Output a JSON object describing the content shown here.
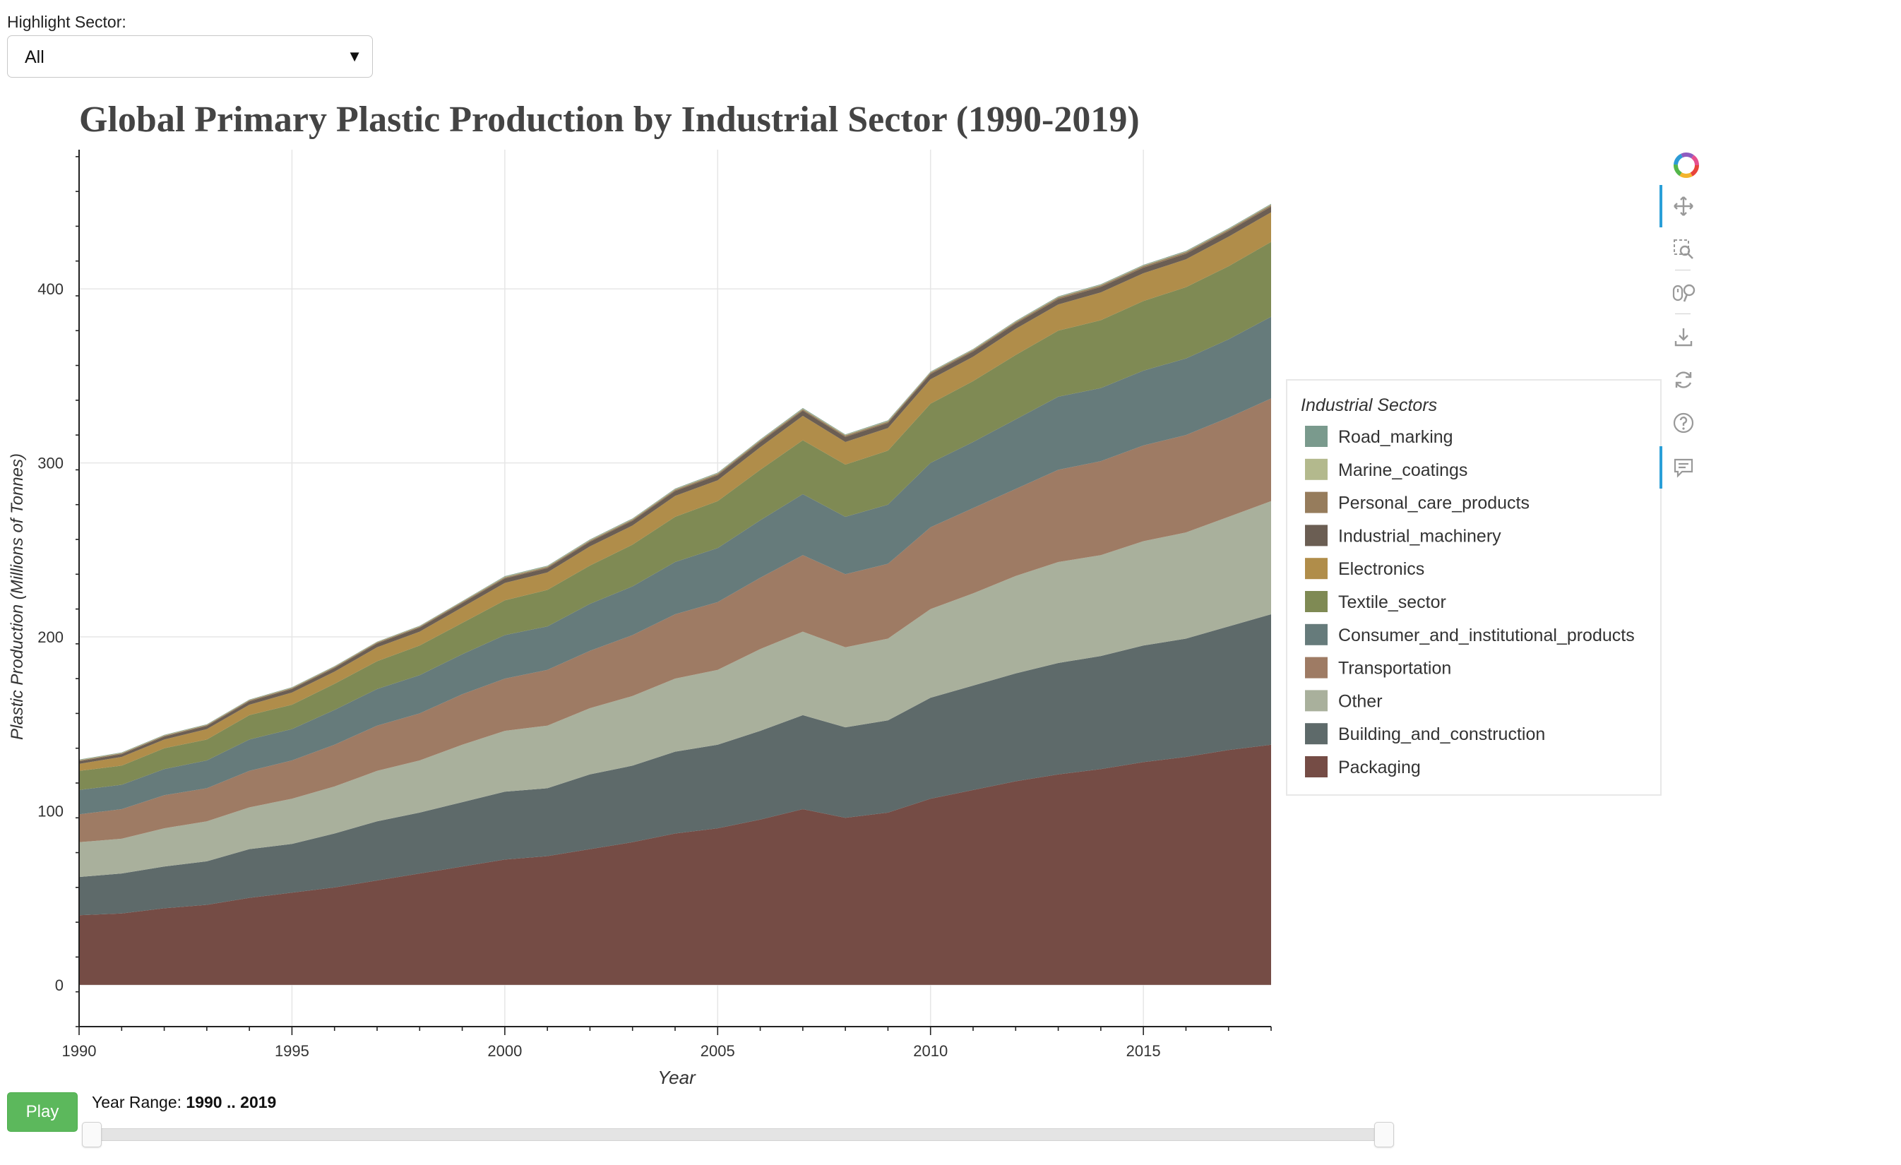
{
  "controls": {
    "highlight_label": "Highlight Sector:",
    "highlight_value": "All",
    "play_label": "Play",
    "range_label": "Year Range:",
    "range_value": "1990 .. 2019",
    "range_start": 1990,
    "range_end": 2019
  },
  "toolbar": {
    "tools": [
      "bokeh-logo-icon",
      "pan-icon",
      "box-zoom-icon",
      "wheel-zoom-icon",
      "save-icon",
      "reset-icon",
      "help-icon",
      "hover-icon"
    ]
  },
  "chart_data": {
    "type": "area",
    "stacked": true,
    "title": "Global Primary Plastic Production by Industrial Sector (1990-2019)",
    "xlabel": "Year",
    "ylabel": "Plastic Production (Millions of Tonnes)",
    "legend_title": "Industrial Sectors",
    "legend_placement": "right",
    "grid": true,
    "xlim": [
      1990,
      2018
    ],
    "ylim": [
      -24,
      480
    ],
    "x_ticks": [
      1990,
      1995,
      2000,
      2005,
      2010,
      2015
    ],
    "y_ticks": [
      0,
      100,
      200,
      300,
      400
    ],
    "x": [
      1990,
      1991,
      1992,
      1993,
      1994,
      1995,
      1996,
      1997,
      1998,
      1999,
      2000,
      2001,
      2002,
      2003,
      2004,
      2005,
      2006,
      2007,
      2008,
      2009,
      2010,
      2011,
      2012,
      2013,
      2014,
      2015,
      2016,
      2017,
      2018
    ],
    "series": [
      {
        "name": "Packaging",
        "color": "#754c45",
        "values": [
          40,
          41,
          44,
          46,
          50,
          53,
          56,
          60,
          64,
          68,
          72,
          74,
          78,
          82,
          87,
          90,
          95,
          101,
          96,
          99,
          107,
          112,
          117,
          121,
          124,
          128,
          131,
          135,
          138
        ]
      },
      {
        "name": "Building_and_construction",
        "color": "#5e6a6a",
        "values": [
          22,
          23,
          24,
          25,
          28,
          28,
          31,
          34,
          35,
          37,
          39,
          39,
          43,
          44,
          47,
          48,
          51,
          54,
          52,
          53,
          58,
          60,
          62,
          64,
          65,
          67,
          68,
          71,
          75
        ]
      },
      {
        "name": "Other",
        "color": "#a9b09c",
        "values": [
          20,
          20,
          22,
          23,
          24,
          26,
          27,
          29,
          30,
          33,
          35,
          36,
          38,
          40,
          42,
          43,
          47,
          48,
          46,
          47,
          51,
          53,
          56,
          58,
          58,
          60,
          61,
          63,
          65
        ]
      },
      {
        "name": "Transportation",
        "color": "#9e7b64",
        "values": [
          16,
          17,
          19,
          19,
          21,
          22,
          24,
          26,
          27,
          29,
          30,
          32,
          33,
          35,
          37,
          39,
          41,
          44,
          42,
          43,
          47,
          49,
          50,
          53,
          54,
          55,
          56,
          57,
          59
        ]
      },
      {
        "name": "Consumer_and_institutional_products",
        "color": "#667b7b",
        "values": [
          14,
          14,
          15,
          16,
          18,
          18,
          20,
          21,
          22,
          23,
          25,
          25,
          27,
          28,
          30,
          31,
          33,
          35,
          33,
          34,
          37,
          38,
          40,
          42,
          42,
          43,
          44,
          45,
          47
        ]
      },
      {
        "name": "Textile_sector",
        "color": "#7f8a54",
        "values": [
          11,
          11,
          12,
          12,
          14,
          14,
          15,
          16,
          17,
          18,
          20,
          21,
          22,
          24,
          26,
          27,
          29,
          31,
          30,
          31,
          34,
          35,
          37,
          38,
          39,
          40,
          41,
          42,
          43
        ]
      },
      {
        "name": "Electronics",
        "color": "#b08d4a",
        "values": [
          4,
          5,
          5,
          6,
          6,
          7,
          7,
          8,
          8,
          9,
          10,
          10,
          11,
          11,
          12,
          12,
          13,
          14,
          13,
          13,
          14,
          14,
          15,
          15,
          16,
          16,
          16,
          17,
          17
        ]
      },
      {
        "name": "Industrial_machinery",
        "color": "#6b5e53",
        "values": [
          1.5,
          1.6,
          1.7,
          1.8,
          1.9,
          2.0,
          2.1,
          2.2,
          2.3,
          2.4,
          2.5,
          2.5,
          2.6,
          2.7,
          2.8,
          2.9,
          3.0,
          3.0,
          2.9,
          2.9,
          3.0,
          3.0,
          3.1,
          3.1,
          3.1,
          3.2,
          3.2,
          3.2,
          3.3
        ]
      },
      {
        "name": "Personal_care_products",
        "color": "#967c5c",
        "values": [
          0.5,
          0.5,
          0.5,
          0.5,
          0.6,
          0.6,
          0.6,
          0.6,
          0.6,
          0.7,
          0.7,
          0.7,
          0.7,
          0.7,
          0.7,
          0.8,
          0.8,
          0.8,
          0.8,
          0.8,
          0.8,
          0.8,
          0.8,
          0.9,
          0.9,
          0.9,
          0.9,
          0.9,
          0.9
        ]
      },
      {
        "name": "Marine_coatings",
        "color": "#b3b98d",
        "values": [
          0.3,
          0.3,
          0.3,
          0.3,
          0.3,
          0.3,
          0.3,
          0.3,
          0.3,
          0.3,
          0.4,
          0.4,
          0.4,
          0.4,
          0.4,
          0.4,
          0.4,
          0.4,
          0.4,
          0.4,
          0.4,
          0.4,
          0.4,
          0.4,
          0.4,
          0.4,
          0.4,
          0.4,
          0.4
        ]
      },
      {
        "name": "Road_marking",
        "color": "#7a9a8d",
        "values": [
          0.2,
          0.2,
          0.2,
          0.2,
          0.2,
          0.2,
          0.2,
          0.2,
          0.2,
          0.2,
          0.3,
          0.3,
          0.3,
          0.3,
          0.3,
          0.3,
          0.3,
          0.3,
          0.3,
          0.3,
          0.3,
          0.3,
          0.3,
          0.3,
          0.3,
          0.3,
          0.3,
          0.3,
          0.3
        ]
      }
    ]
  }
}
